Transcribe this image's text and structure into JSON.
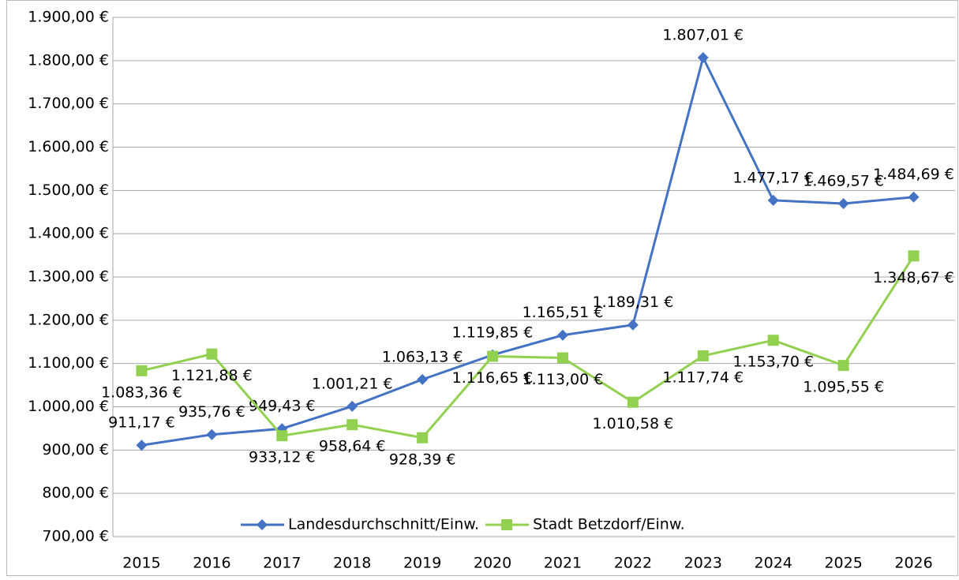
{
  "chart_data": {
    "type": "line",
    "categories": [
      "2015",
      "2016",
      "2017",
      "2018",
      "2019",
      "2020",
      "2021",
      "2022",
      "2023",
      "2024",
      "2025",
      "2026"
    ],
    "series": [
      {
        "name": "Landesdurchschnitt/Einw.",
        "color": "#4472c4",
        "values": [
          911.17,
          935.76,
          949.43,
          1001.21,
          1063.13,
          1119.85,
          1165.51,
          1189.31,
          1807.01,
          1477.17,
          1469.57,
          1484.69
        ],
        "value_labels": [
          "911,17 €",
          "935,76 €",
          "949,43 €",
          "1.001,21 €",
          "1.063,13 €",
          "1.119,85 €",
          "1.165,51 €",
          "1.189,31 €",
          "1.807,01 €",
          "1.477,17 €",
          "1.469,57 €",
          "1.484,69 €"
        ]
      },
      {
        "name": "Stadt Betzdorf/Einw.",
        "color": "#92d050",
        "values": [
          1083.36,
          1121.88,
          933.12,
          958.64,
          928.39,
          1116.65,
          1113.0,
          1010.58,
          1117.74,
          1153.7,
          1095.55,
          1348.67
        ],
        "value_labels": [
          "1.083,36 €",
          "1.121,88 €",
          "933,12 €",
          "958,64 €",
          "928,39 €",
          "1.116,65 €",
          "1.113,00 €",
          "1.010,58 €",
          "1.117,74 €",
          "1.153,70 €",
          "1.095,55 €",
          "1.348,67 €"
        ]
      }
    ],
    "ylim": [
      700,
      1900
    ],
    "yticks": [
      {
        "value": 700,
        "label": "700,00 €"
      },
      {
        "value": 800,
        "label": "800,00 €"
      },
      {
        "value": 900,
        "label": "900,00 €"
      },
      {
        "value": 1000,
        "label": "1.000,00 €"
      },
      {
        "value": 1100,
        "label": "1.100,00 €"
      },
      {
        "value": 1200,
        "label": "1.200,00 €"
      },
      {
        "value": 1300,
        "label": "1.300,00 €"
      },
      {
        "value": 1400,
        "label": "1.400,00 €"
      },
      {
        "value": 1500,
        "label": "1.500,00 €"
      },
      {
        "value": 1600,
        "label": "1.600,00 €"
      },
      {
        "value": 1700,
        "label": "1.700,00 €"
      },
      {
        "value": 1800,
        "label": "1.800,00 €"
      },
      {
        "value": 1900,
        "label": "1.900,00 €"
      }
    ],
    "grid": true,
    "legend": "bottom"
  }
}
